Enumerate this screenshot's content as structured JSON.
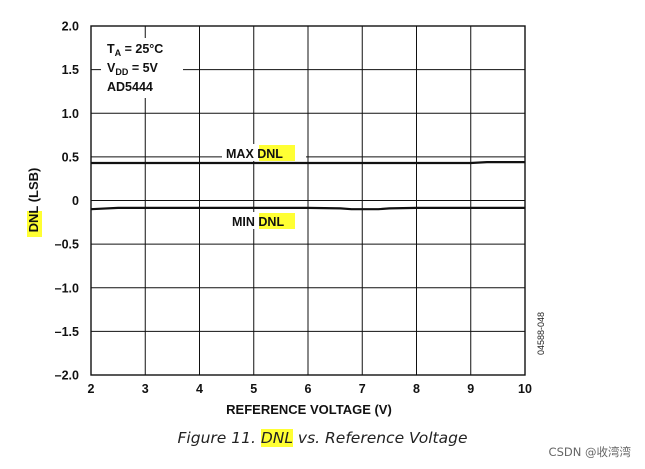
{
  "chart_data": {
    "type": "line",
    "xlabel": "REFERENCE VOLTAGE (V)",
    "ylabel_main": "DNL",
    "ylabel_unit": " (LSB)",
    "xlim": [
      2,
      10
    ],
    "ylim": [
      -2.0,
      2.0
    ],
    "x_ticks": [
      2,
      3,
      4,
      5,
      6,
      7,
      8,
      9,
      10
    ],
    "y_ticks": [
      2.0,
      1.5,
      1.0,
      0.5,
      0,
      -0.5,
      -1.0,
      -1.5,
      -2.0
    ],
    "y_tick_labels": [
      "2.0",
      "1.5",
      "1.0",
      "0.5",
      "0",
      "–0.5",
      "–1.0",
      "–1.5",
      "–2.0"
    ],
    "grid": true,
    "series": [
      {
        "name": "MAX DNL",
        "x": [
          2,
          2.5,
          3,
          4,
          5,
          6,
          7,
          8,
          9,
          9.3,
          10
        ],
        "values": [
          0.43,
          0.43,
          0.43,
          0.43,
          0.43,
          0.43,
          0.43,
          0.43,
          0.43,
          0.44,
          0.44
        ]
      },
      {
        "name": "MIN DNL",
        "x": [
          2,
          2.5,
          3,
          4,
          5,
          6,
          6.6,
          6.8,
          7.3,
          7.5,
          8,
          9,
          10
        ],
        "values": [
          -0.1,
          -0.085,
          -0.085,
          -0.085,
          -0.085,
          -0.085,
          -0.09,
          -0.1,
          -0.1,
          -0.09,
          -0.085,
          -0.085,
          -0.085
        ]
      }
    ],
    "annotations": {
      "conditions": [
        "T",
        "A",
        " = 25°C"
      ],
      "conditions2": [
        "V",
        "DD",
        " = 5V"
      ],
      "part": "AD5444",
      "max_prefix": "MAX ",
      "max_highlight": "DNL",
      "min_prefix": "MIN ",
      "min_highlight": "DNL"
    },
    "figure_code": "04588-048"
  },
  "caption": {
    "prefix": "Figure 11. ",
    "highlight": "DNL",
    "suffix": " vs. Reference Voltage"
  },
  "watermark": "CSDN @收湾湾"
}
